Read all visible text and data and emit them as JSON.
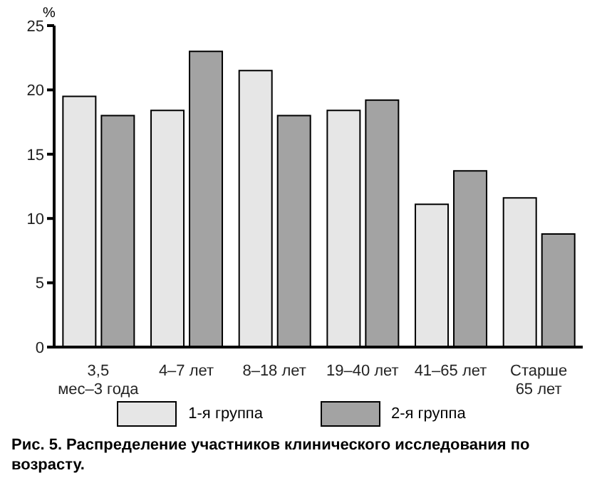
{
  "chart_data": {
    "type": "bar",
    "ylabel": "%",
    "categories": [
      "3,5 мес–3 года",
      "4–7 лет",
      "8–18 лет",
      "19–40 лет",
      "41–65 лет",
      "Старше 65 лет"
    ],
    "series": [
      {
        "name": "1-я группа",
        "color": "#e6e6e6",
        "values": [
          19.5,
          18.4,
          21.5,
          18.4,
          11.1,
          11.6
        ]
      },
      {
        "name": "2-я группа",
        "color": "#a3a3a3",
        "values": [
          18.0,
          23.0,
          18.0,
          19.2,
          13.7,
          8.8
        ]
      }
    ],
    "ylim": [
      0,
      25
    ],
    "yticks": [
      0,
      5,
      10,
      15,
      20,
      25
    ],
    "grid": false,
    "legend": "bottom",
    "annotations": [
      "Рис. 5. Распределение участников клинического исследования по возрасту."
    ]
  }
}
